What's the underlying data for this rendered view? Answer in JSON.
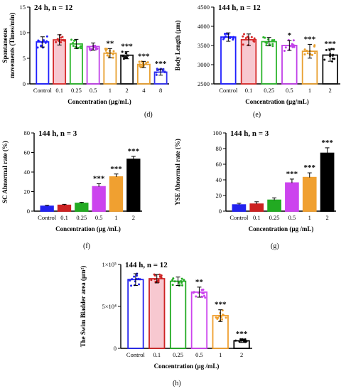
{
  "chart_data": [
    {
      "type": "bar",
      "panel_label": "(d)",
      "title": "24 h, n = 12",
      "xlabel": "Concentration (µg/mL)",
      "ylabel": "Spontaneous movements (Times/min)",
      "ylabel_lines": [
        "Spontaneous",
        "movements (Times/min)"
      ],
      "yticks": [
        "0",
        "5",
        "10",
        "15"
      ],
      "ylim": [
        0,
        15
      ],
      "categories": [
        "Control",
        "0.1",
        "0.25",
        "0.5",
        "1",
        "2",
        "4",
        "8"
      ],
      "values": [
        8.2,
        8.6,
        7.8,
        7.3,
        6.0,
        5.6,
        3.8,
        2.3
      ],
      "errors": [
        1.0,
        1.0,
        0.9,
        0.7,
        0.9,
        0.7,
        0.6,
        0.6
      ],
      "colors": [
        "#1f1fff",
        "#d62a2a",
        "#2db52d",
        "#c040e8",
        "#e8a030",
        "#111111",
        "#e8a030",
        "#3030ee"
      ],
      "fills": [
        "none",
        "#f7c8d0",
        "none",
        "none",
        "none",
        "none",
        "none",
        "none"
      ],
      "significance": [
        "",
        "",
        "",
        "",
        "**",
        "***",
        "***",
        "***"
      ],
      "grid": false
    },
    {
      "type": "bar",
      "panel_label": "(e)",
      "title": "144 h, n = 12",
      "xlabel": "Concentration (µg/mL)",
      "ylabel": "Body Length (µm)",
      "ylabel_lines": [
        "Body Length (µm)"
      ],
      "yticks": [
        "2500",
        "3000",
        "3500",
        "4000",
        "4500"
      ],
      "ylim": [
        2500,
        4500
      ],
      "categories": [
        "Control",
        "0.1",
        "0.25",
        "0.5",
        "1",
        "2"
      ],
      "values": [
        3720,
        3650,
        3600,
        3500,
        3350,
        3250
      ],
      "errors": [
        110,
        150,
        110,
        130,
        180,
        160
      ],
      "colors": [
        "#1f1fff",
        "#d62a2a",
        "#2db52d",
        "#c040e8",
        "#e8a030",
        "#111111"
      ],
      "fills": [
        "none",
        "#f7c8d0",
        "none",
        "none",
        "none",
        "none"
      ],
      "significance": [
        "",
        "",
        "",
        "*",
        "***",
        "***"
      ],
      "grid": false
    },
    {
      "type": "bar",
      "panel_label": "(f)",
      "title": "144 h, n = 3",
      "xlabel": "Concentration (µg /mL)",
      "ylabel": "SC Abnormal rate (%)",
      "ylabel_lines": [
        "SC Abnormal rate (%)"
      ],
      "yticks": [
        "0",
        "20",
        "40",
        "60",
        "80"
      ],
      "ylim": [
        0,
        80
      ],
      "categories": [
        "Control",
        "0.1",
        "0.25",
        "0.5",
        "1",
        "2"
      ],
      "values": [
        5,
        6,
        8,
        25,
        35,
        53
      ],
      "errors": [
        1,
        1,
        1,
        3,
        3,
        3
      ],
      "colors": [
        "#2222ee",
        "#cc2222",
        "#22aa22",
        "#cc44ee",
        "#f0a030",
        "#000000"
      ],
      "fills": [
        "#2222ee",
        "#cc2222",
        "#22aa22",
        "#cc44ee",
        "#f0a030",
        "#000000"
      ],
      "significance": [
        "",
        "",
        "",
        "***",
        "***",
        "***"
      ],
      "grid": false
    },
    {
      "type": "bar",
      "panel_label": "(g)",
      "title": "144 h, n = 3",
      "xlabel": "Concentration (µg /mL)",
      "ylabel": "YSE Abnormal rate (%)",
      "ylabel_lines": [
        "YSE Abnormal rate (%)"
      ],
      "yticks": [
        "0",
        "20",
        "40",
        "60",
        "80",
        "100"
      ],
      "ylim": [
        0,
        100
      ],
      "categories": [
        "Control",
        "0.1",
        "0.25",
        "0.5",
        "1",
        "2"
      ],
      "values": [
        8,
        9,
        14,
        36,
        43,
        74
      ],
      "errors": [
        2,
        3,
        3,
        5,
        6,
        7
      ],
      "colors": [
        "#2222ee",
        "#cc2222",
        "#22aa22",
        "#cc44ee",
        "#f0a030",
        "#000000"
      ],
      "fills": [
        "#2222ee",
        "#cc2222",
        "#22aa22",
        "#cc44ee",
        "#f0a030",
        "#000000"
      ],
      "significance": [
        "",
        "",
        "",
        "***",
        "***",
        "***"
      ],
      "grid": false
    },
    {
      "type": "bar",
      "panel_label": "(h)",
      "title": "144 h, n = 12",
      "xlabel": "Concentration (µg /mL)",
      "ylabel": "The Swim Bladder area (µm²)",
      "ylabel_lines": [
        "The Swim Bladder area (µm²)"
      ],
      "yticks": [
        "0",
        "5×10⁴",
        "1×10⁵"
      ],
      "ylim": [
        0,
        100000
      ],
      "categories": [
        "Control",
        "0.1",
        "0.25",
        "0.5",
        "1",
        "2"
      ],
      "values": [
        82000,
        83000,
        80000,
        67000,
        39000,
        9000
      ],
      "errors": [
        7000,
        5000,
        5000,
        6000,
        7000,
        2000
      ],
      "colors": [
        "#2222ee",
        "#cc2222",
        "#22aa22",
        "#cc44ee",
        "#f0a030",
        "#000000"
      ],
      "fills": [
        "none",
        "#f7c8d0",
        "none",
        "none",
        "none",
        "none"
      ],
      "significance": [
        "",
        "",
        "",
        "**",
        "***",
        "***"
      ],
      "grid": false
    }
  ]
}
